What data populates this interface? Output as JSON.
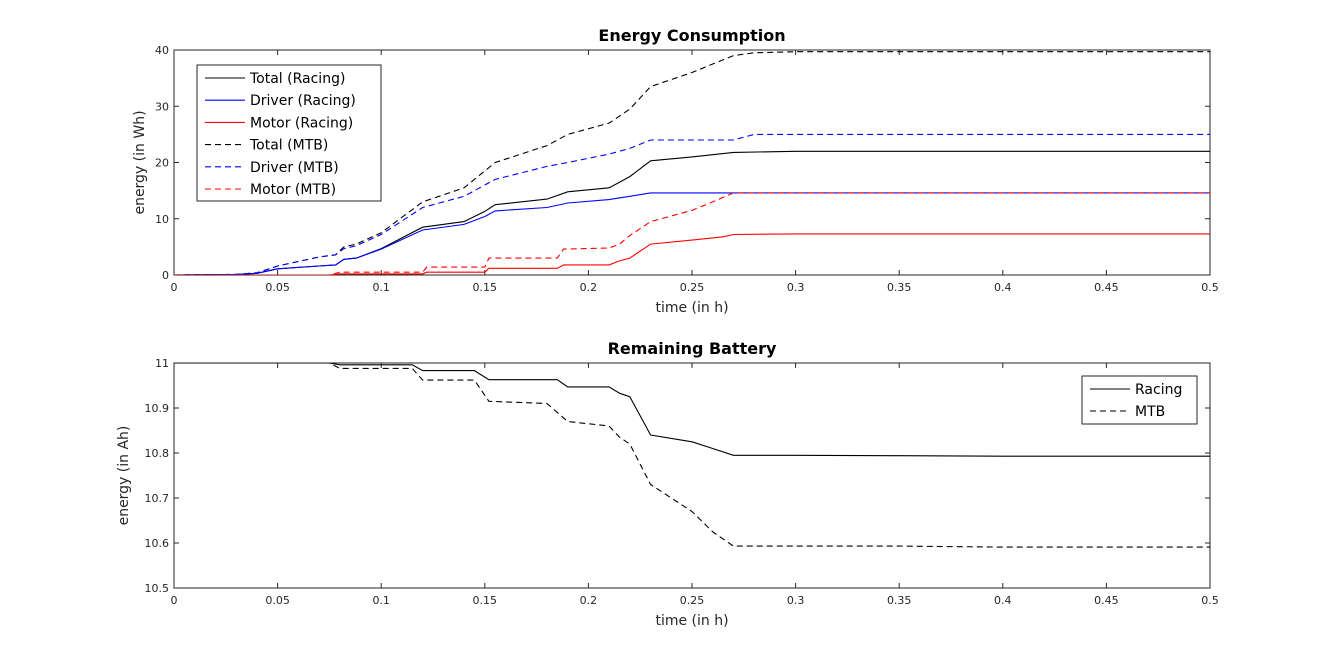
{
  "colors": {
    "black": "#000000",
    "blue": "#0000ff",
    "red": "#ff0000",
    "axis": "#262626",
    "background": "#ffffff"
  },
  "chart_data": [
    {
      "type": "line",
      "title": "Energy Consumption",
      "xlabel": "time (in h)",
      "ylabel": "energy (in Wh)",
      "xlim": [
        0,
        0.5
      ],
      "ylim": [
        0,
        40
      ],
      "xticks": [
        0,
        0.05,
        0.1,
        0.15,
        0.2,
        0.25,
        0.3,
        0.35,
        0.4,
        0.45,
        0.5
      ],
      "yticks": [
        0,
        10,
        20,
        30,
        40
      ],
      "grid": false,
      "legend_position": "top-left",
      "series": [
        {
          "name": "Total (Racing)",
          "color": "#000000",
          "dash": "solid",
          "x": [
            0,
            0.03,
            0.04,
            0.05,
            0.07,
            0.078,
            0.082,
            0.088,
            0.1,
            0.12,
            0.14,
            0.15,
            0.155,
            0.18,
            0.19,
            0.21,
            0.22,
            0.23,
            0.25,
            0.27,
            0.3,
            0.5
          ],
          "y": [
            0,
            0.1,
            0.3,
            1.1,
            1.6,
            1.8,
            2.8,
            3.0,
            4.7,
            8.5,
            9.5,
            11.3,
            12.5,
            13.5,
            14.8,
            15.5,
            17.5,
            20.3,
            21.0,
            21.8,
            22.0,
            22.0
          ]
        },
        {
          "name": "Driver (Racing)",
          "color": "#0000ff",
          "dash": "solid",
          "x": [
            0,
            0.03,
            0.04,
            0.05,
            0.07,
            0.078,
            0.082,
            0.088,
            0.1,
            0.12,
            0.14,
            0.15,
            0.155,
            0.18,
            0.19,
            0.21,
            0.22,
            0.23,
            0.5
          ],
          "y": [
            0,
            0.1,
            0.3,
            1.1,
            1.6,
            1.8,
            2.8,
            3.0,
            4.6,
            8.0,
            9.0,
            10.4,
            11.4,
            12.0,
            12.8,
            13.4,
            14.0,
            14.6,
            14.6
          ]
        },
        {
          "name": "Motor (Racing)",
          "color": "#ff0000",
          "dash": "solid",
          "x": [
            0,
            0.075,
            0.08,
            0.12,
            0.122,
            0.15,
            0.152,
            0.185,
            0.188,
            0.21,
            0.215,
            0.22,
            0.23,
            0.25,
            0.265,
            0.27,
            0.3,
            0.5
          ],
          "y": [
            0,
            0,
            0.2,
            0.2,
            0.5,
            0.5,
            1.2,
            1.2,
            1.8,
            1.8,
            2.5,
            3.0,
            5.5,
            6.2,
            6.8,
            7.2,
            7.3,
            7.3
          ]
        },
        {
          "name": "Total (MTB)",
          "color": "#000000",
          "dash": "dashed",
          "x": [
            0,
            0.03,
            0.04,
            0.05,
            0.07,
            0.078,
            0.082,
            0.088,
            0.1,
            0.12,
            0.14,
            0.15,
            0.155,
            0.18,
            0.19,
            0.21,
            0.22,
            0.23,
            0.25,
            0.27,
            0.28,
            0.3,
            0.5
          ],
          "y": [
            0,
            0.1,
            0.4,
            1.6,
            3.2,
            3.6,
            5.0,
            5.5,
            7.5,
            13.0,
            15.5,
            18.5,
            20.0,
            23.0,
            25.0,
            27.0,
            29.5,
            33.5,
            36.0,
            39.0,
            39.5,
            39.7,
            39.7
          ]
        },
        {
          "name": "Driver (MTB)",
          "color": "#0000ff",
          "dash": "dashed",
          "x": [
            0,
            0.03,
            0.04,
            0.05,
            0.07,
            0.078,
            0.082,
            0.088,
            0.1,
            0.12,
            0.14,
            0.15,
            0.155,
            0.18,
            0.19,
            0.21,
            0.22,
            0.23,
            0.27,
            0.28,
            0.5
          ],
          "y": [
            0,
            0.1,
            0.4,
            1.6,
            3.2,
            3.6,
            4.7,
            5.2,
            7.2,
            12.0,
            14.0,
            16.0,
            17.0,
            19.3,
            20.0,
            21.5,
            22.5,
            24.0,
            24.0,
            25.0,
            25.0
          ]
        },
        {
          "name": "Motor (MTB)",
          "color": "#ff0000",
          "dash": "dashed",
          "x": [
            0,
            0.075,
            0.08,
            0.12,
            0.122,
            0.15,
            0.152,
            0.185,
            0.188,
            0.21,
            0.215,
            0.22,
            0.23,
            0.25,
            0.26,
            0.27,
            0.5
          ],
          "y": [
            0,
            0,
            0.5,
            0.5,
            1.4,
            1.4,
            3.0,
            3.0,
            4.6,
            4.8,
            5.5,
            7.0,
            9.5,
            11.5,
            13.0,
            14.6,
            14.6
          ]
        }
      ]
    },
    {
      "type": "line",
      "title": "Remaining Battery",
      "xlabel": "time (in h)",
      "ylabel": "energy (in Ah)",
      "xlim": [
        0,
        0.5
      ],
      "ylim": [
        10.5,
        11
      ],
      "xticks": [
        0,
        0.05,
        0.1,
        0.15,
        0.2,
        0.25,
        0.3,
        0.35,
        0.4,
        0.45,
        0.5
      ],
      "yticks": [
        10.5,
        10.6,
        10.7,
        10.8,
        10.9,
        11
      ],
      "grid": false,
      "legend_position": "top-right",
      "series": [
        {
          "name": "Racing",
          "color": "#000000",
          "dash": "solid",
          "x": [
            0,
            0.075,
            0.08,
            0.115,
            0.12,
            0.145,
            0.152,
            0.185,
            0.19,
            0.21,
            0.215,
            0.22,
            0.23,
            0.25,
            0.26,
            0.27,
            0.3,
            0.35,
            0.4,
            0.5
          ],
          "y": [
            11.0,
            11.0,
            10.996,
            10.996,
            10.983,
            10.983,
            10.963,
            10.963,
            10.947,
            10.947,
            10.933,
            10.925,
            10.84,
            10.825,
            10.81,
            10.795,
            10.795,
            10.794,
            10.793,
            10.793
          ]
        },
        {
          "name": "MTB",
          "color": "#000000",
          "dash": "dashed",
          "x": [
            0,
            0.075,
            0.08,
            0.115,
            0.12,
            0.145,
            0.152,
            0.18,
            0.19,
            0.21,
            0.215,
            0.22,
            0.23,
            0.25,
            0.26,
            0.27,
            0.3,
            0.35,
            0.4,
            0.5
          ],
          "y": [
            11.0,
            11.0,
            10.988,
            10.988,
            10.962,
            10.962,
            10.915,
            10.91,
            10.87,
            10.86,
            10.835,
            10.82,
            10.73,
            10.67,
            10.625,
            10.593,
            10.593,
            10.593,
            10.591,
            10.591
          ]
        }
      ]
    }
  ]
}
